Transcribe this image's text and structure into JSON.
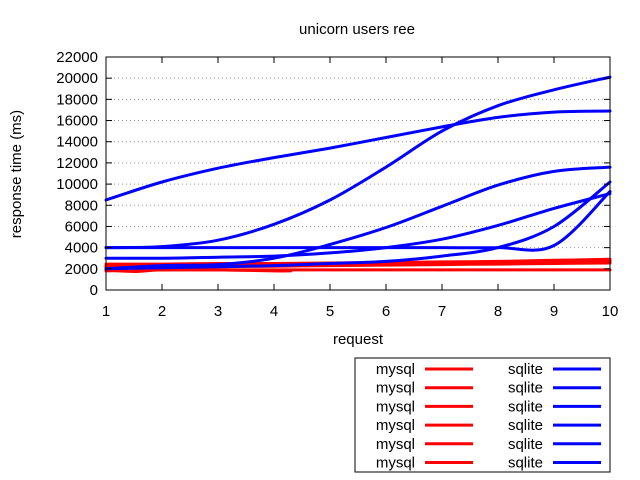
{
  "chart_data": {
    "type": "line",
    "title": "unicorn users ree",
    "xlabel": "request",
    "ylabel": "response time (ms)",
    "xlim": [
      1,
      10
    ],
    "ylim": [
      0,
      22000
    ],
    "x_ticks": [
      1,
      2,
      3,
      4,
      5,
      6,
      7,
      8,
      9,
      10
    ],
    "y_ticks": [
      0,
      2000,
      4000,
      6000,
      8000,
      10000,
      12000,
      14000,
      16000,
      18000,
      20000,
      22000
    ],
    "grid": "horizontal dotted",
    "legend_placement": "below plot, right, two columns",
    "colors": {
      "mysql": "#ff0000",
      "sqlite": "#0000ff"
    },
    "series": [
      {
        "name": "mysql",
        "color": "#ff0000",
        "x": [
          1,
          2,
          3,
          4,
          5,
          6,
          7,
          8,
          9,
          10
        ],
        "y": [
          1800,
          1900,
          1900,
          1900,
          1900,
          1900,
          1900,
          1900,
          1900,
          1900
        ]
      },
      {
        "name": "mysql",
        "color": "#ff0000",
        "x": [
          1,
          1.5,
          2,
          3,
          4,
          4.3
        ],
        "y": [
          1900,
          1750,
          1900,
          1900,
          1800,
          1800
        ]
      },
      {
        "name": "mysql",
        "color": "#ff0000",
        "x": [
          1,
          2,
          3,
          4,
          5,
          6,
          7,
          8,
          9,
          10
        ],
        "y": [
          2100,
          2150,
          2200,
          2250,
          2300,
          2350,
          2400,
          2450,
          2500,
          2550
        ]
      },
      {
        "name": "mysql",
        "color": "#ff0000",
        "x": [
          1,
          2,
          3,
          4,
          5,
          6,
          7,
          8,
          9,
          10
        ],
        "y": [
          2200,
          2250,
          2300,
          2350,
          2400,
          2450,
          2500,
          2550,
          2600,
          2650
        ]
      },
      {
        "name": "mysql",
        "color": "#ff0000",
        "x": [
          1,
          2,
          3,
          4,
          5,
          6,
          7,
          8,
          9,
          10
        ],
        "y": [
          2300,
          2350,
          2400,
          2450,
          2500,
          2550,
          2600,
          2650,
          2700,
          2800
        ]
      },
      {
        "name": "mysql",
        "color": "#ff0000",
        "x": [
          1,
          2,
          3,
          4,
          5,
          6,
          7,
          8,
          9,
          10
        ],
        "y": [
          2450,
          2450,
          2500,
          2500,
          2550,
          2600,
          2650,
          2700,
          2800,
          2900
        ]
      },
      {
        "name": "sqlite",
        "color": "#0000ff",
        "x": [
          1,
          2,
          3,
          4,
          5,
          6,
          7,
          8,
          9,
          10
        ],
        "y": [
          8500,
          10200,
          11500,
          12500,
          13400,
          14400,
          15400,
          16300,
          16800,
          16900
        ]
      },
      {
        "name": "sqlite",
        "color": "#0000ff",
        "x": [
          1,
          2,
          3,
          4,
          5,
          6,
          7,
          8,
          9,
          10
        ],
        "y": [
          4000,
          4100,
          4700,
          6200,
          8500,
          11600,
          15000,
          17400,
          18900,
          20100
        ]
      },
      {
        "name": "sqlite",
        "color": "#0000ff",
        "x": [
          1,
          2,
          3,
          4,
          5,
          6,
          7,
          8,
          9,
          10
        ],
        "y": [
          2000,
          2300,
          2400,
          3000,
          4300,
          5900,
          7900,
          9900,
          11200,
          11600
        ]
      },
      {
        "name": "sqlite",
        "color": "#0000ff",
        "x": [
          1,
          2,
          3,
          4,
          5,
          6,
          7,
          8,
          9,
          10
        ],
        "y": [
          4000,
          4000,
          4000,
          4000,
          4000,
          4000,
          4000,
          4000,
          4200,
          9300
        ]
      },
      {
        "name": "sqlite",
        "color": "#0000ff",
        "x": [
          1,
          2,
          3,
          4,
          5,
          6,
          7,
          8,
          9,
          10
        ],
        "y": [
          3000,
          3000,
          3100,
          3200,
          3500,
          4000,
          4800,
          6100,
          7700,
          9100
        ]
      },
      {
        "name": "sqlite",
        "color": "#0000ff",
        "x": [
          1,
          2,
          3,
          4,
          5,
          6,
          7,
          8,
          9,
          10
        ],
        "y": [
          2000,
          2100,
          2200,
          2300,
          2500,
          2700,
          3200,
          4000,
          6000,
          10200
        ]
      }
    ],
    "legend": [
      {
        "label": "mysql",
        "color": "#ff0000"
      },
      {
        "label": "mysql",
        "color": "#ff0000"
      },
      {
        "label": "mysql",
        "color": "#ff0000"
      },
      {
        "label": "mysql",
        "color": "#ff0000"
      },
      {
        "label": "mysql",
        "color": "#ff0000"
      },
      {
        "label": "mysql",
        "color": "#ff0000"
      },
      {
        "label": "sqlite",
        "color": "#0000ff"
      },
      {
        "label": "sqlite",
        "color": "#0000ff"
      },
      {
        "label": "sqlite",
        "color": "#0000ff"
      },
      {
        "label": "sqlite",
        "color": "#0000ff"
      },
      {
        "label": "sqlite",
        "color": "#0000ff"
      },
      {
        "label": "sqlite",
        "color": "#0000ff"
      }
    ]
  }
}
